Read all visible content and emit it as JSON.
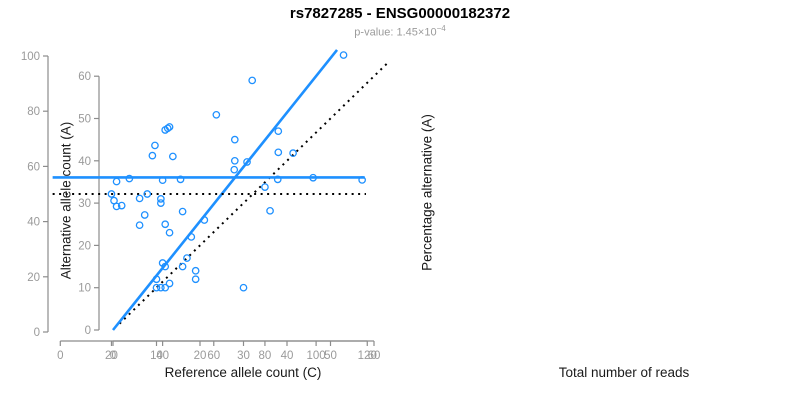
{
  "header": {
    "title": "rs7827285 - ENSG00000182372",
    "subtitle_label": "p-value:",
    "subtitle_value": "1.45×10",
    "subtitle_exponent": "−4"
  },
  "colors": {
    "accent_blue": "#1e90ff",
    "axis_line": "#8c8c8c",
    "tick_label": "#9a9a9a",
    "axis_title": "#1a1a1a",
    "title_text": "#000000",
    "subtitle_text": "#9b9b9b",
    "reference_dotted": "#000000",
    "background": "#ffffff"
  },
  "chart_data": [
    {
      "type": "scatter",
      "xlabel": "Reference allele count (C)",
      "ylabel": "Alternative allele count (A)",
      "xlim": [
        0,
        63
      ],
      "ylim": [
        0,
        67
      ],
      "xticks": [
        0,
        10,
        20,
        30,
        40,
        50,
        60
      ],
      "yticks": [
        0,
        10,
        20,
        30,
        40,
        50,
        60
      ],
      "grid": false,
      "legend": null,
      "points": [
        [
          10,
          10
        ],
        [
          10,
          12
        ],
        [
          11,
          10
        ],
        [
          11,
          30
        ],
        [
          11,
          31
        ],
        [
          12,
          10
        ],
        [
          12,
          15
        ],
        [
          12,
          25
        ],
        [
          13,
          11
        ],
        [
          13,
          23
        ],
        [
          13,
          48
        ],
        [
          16,
          15
        ],
        [
          16,
          28
        ],
        [
          17,
          17
        ],
        [
          18,
          22
        ],
        [
          19,
          12
        ],
        [
          19,
          14
        ],
        [
          21,
          26
        ],
        [
          28,
          40
        ],
        [
          28,
          45
        ],
        [
          30,
          10
        ],
        [
          32,
          59
        ],
        [
          38,
          42
        ],
        [
          38,
          47
        ],
        [
          46,
          36
        ],
        [
          53,
          65
        ]
      ],
      "fit_line": {
        "x1": 0,
        "y1": 0,
        "x2": 51.5,
        "y2": 66.2
      },
      "reference_line": {
        "x1": 1.5,
        "y1": 1.5,
        "x2": 63,
        "y2": 63
      }
    },
    {
      "type": "scatter",
      "xlabel": "Total number of reads",
      "ylabel": "Percentage alternative (A)",
      "xlim": [
        0,
        120
      ],
      "ylim": [
        0,
        100
      ],
      "xticks": [
        0,
        20,
        40,
        60,
        80,
        100,
        120
      ],
      "yticks": [
        0,
        20,
        40,
        60,
        80,
        100
      ],
      "grid": false,
      "legend": null,
      "points": [
        [
          20,
          50
        ],
        [
          21,
          47.6
        ],
        [
          22,
          45.5
        ],
        [
          22,
          54.5
        ],
        [
          24,
          45.8
        ],
        [
          27,
          55.6
        ],
        [
          31,
          38.7
        ],
        [
          31,
          48.4
        ],
        [
          33,
          42.4
        ],
        [
          34,
          50
        ],
        [
          36,
          63.9
        ],
        [
          37,
          67.6
        ],
        [
          40,
          25
        ],
        [
          40,
          55
        ],
        [
          41,
          73.2
        ],
        [
          42,
          73.8
        ],
        [
          44,
          63.6
        ],
        [
          47,
          55.3
        ],
        [
          61,
          78.7
        ],
        [
          68,
          58.8
        ],
        [
          73,
          61.6
        ],
        [
          80,
          52.5
        ],
        [
          82,
          43.9
        ],
        [
          85,
          55.3
        ],
        [
          91,
          64.8
        ],
        [
          118,
          55.1
        ]
      ],
      "fit_line": {
        "x1": -3,
        "y1": 56,
        "x2": 119,
        "y2": 56
      },
      "reference_line": {
        "x1": -3,
        "y1": 50,
        "x2": 119.5,
        "y2": 50
      }
    }
  ]
}
